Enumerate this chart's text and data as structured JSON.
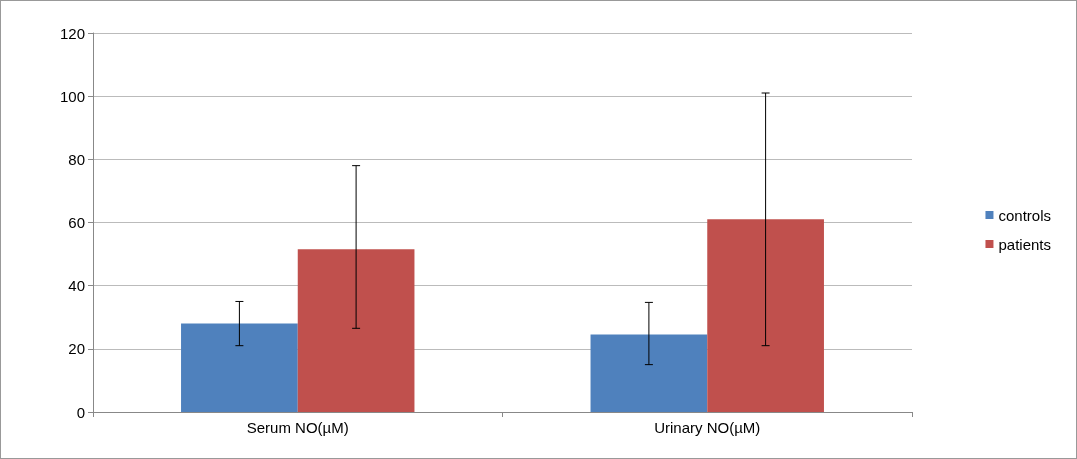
{
  "chart_data": {
    "type": "bar",
    "categories": [
      "Serum NO(µM)",
      "Urinary NO(µM)"
    ],
    "series": [
      {
        "name": "controls",
        "color": "#4f81bd",
        "values": [
          28,
          24.5
        ],
        "errors": [
          [
            21,
            35
          ],
          [
            15,
            34.7
          ]
        ]
      },
      {
        "name": "patients",
        "color": "#c0504d",
        "values": [
          51.5,
          61
        ],
        "errors": [
          [
            26.5,
            78
          ],
          [
            21,
            101
          ]
        ]
      }
    ],
    "ylim": [
      0,
      120
    ],
    "yticks": [
      0,
      20,
      40,
      60,
      80,
      100,
      120
    ],
    "grid": "y",
    "legend": "right"
  }
}
